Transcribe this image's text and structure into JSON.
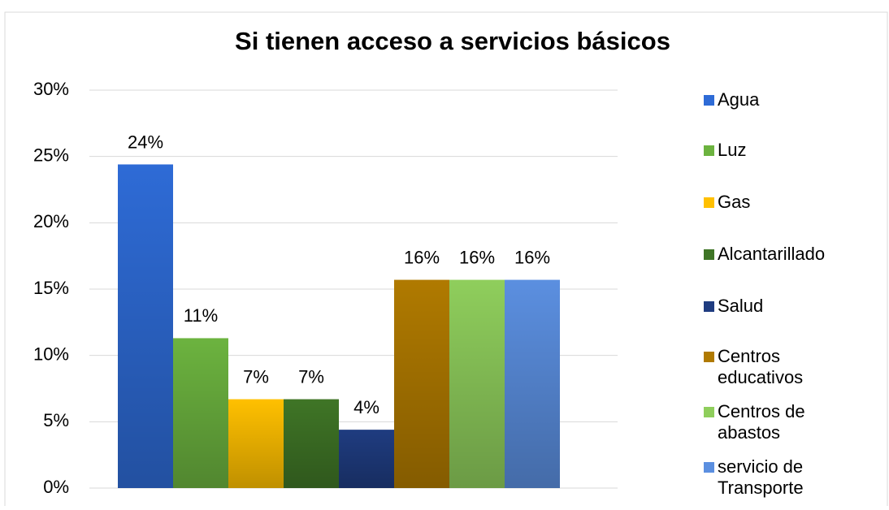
{
  "chart_data": {
    "type": "bar",
    "title": "Si tienen acceso a servicios básicos",
    "categories": [
      null
    ],
    "series": [
      {
        "name": "Agua",
        "color": "#2e6bd6",
        "values": [
          24.4
        ],
        "value_labels": [
          "24%"
        ]
      },
      {
        "name": "Luz",
        "color": "#6cb33f",
        "values": [
          11.3
        ],
        "value_labels": [
          "11%"
        ]
      },
      {
        "name": "Gas",
        "color": "#ffc000",
        "values": [
          6.7
        ],
        "value_labels": [
          "7%"
        ]
      },
      {
        "name": "Alcantarillado",
        "color": "#3f7526",
        "values": [
          6.7
        ],
        "value_labels": [
          "7%"
        ]
      },
      {
        "name": "Salud",
        "color": "#1f3c80",
        "values": [
          4.4
        ],
        "value_labels": [
          "4%"
        ]
      },
      {
        "name": "Centros educativos",
        "color": "#b07a00",
        "values": [
          15.7
        ],
        "value_labels": [
          "16%"
        ]
      },
      {
        "name": "Centros de abastos",
        "color": "#8fce5c",
        "values": [
          15.7
        ],
        "value_labels": [
          "16%"
        ]
      },
      {
        "name": "servicio de Transporte",
        "color": "#5b8fe0",
        "values": [
          15.7
        ],
        "value_labels": [
          "16%"
        ]
      }
    ],
    "ylim": [
      0,
      30
    ],
    "yticks": [
      {
        "value": 0,
        "label": "0%"
      },
      {
        "value": 5,
        "label": "5%"
      },
      {
        "value": 10,
        "label": "10%"
      },
      {
        "value": 15,
        "label": "15%"
      },
      {
        "value": 20,
        "label": "20%"
      },
      {
        "value": 25,
        "label": "25%"
      },
      {
        "value": 30,
        "label": "30%"
      }
    ],
    "grid": true,
    "legend": "right"
  }
}
